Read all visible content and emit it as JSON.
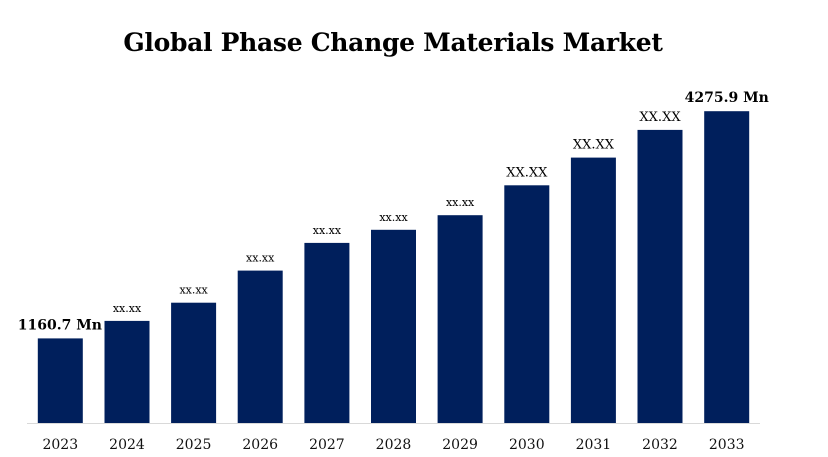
{
  "chart_data": {
    "type": "bar",
    "title": "Global Phase Change Materials Market",
    "xlabel": "",
    "ylabel": "",
    "categories": [
      "2023",
      "2024",
      "2025",
      "2026",
      "2027",
      "2028",
      "2029",
      "2030",
      "2031",
      "2032",
      "2033"
    ],
    "values": [
      1160.7,
      1400,
      1650,
      2090,
      2470,
      2650,
      2850,
      3260,
      3640,
      4020,
      4275.9
    ],
    "data_labels": [
      "1160.7 Mn",
      "xx.xx",
      "xx.xx",
      "xx.xx",
      "xx.xx",
      "xx.xx",
      "xx.xx",
      "XX.XX",
      "XX.XX",
      "XX.XX",
      "4275.9 Mn"
    ],
    "ylim": [
      0,
      4800
    ],
    "grid": false,
    "legend": "none",
    "colors": {
      "bar": "#001f5c",
      "axis": "#d9d9d9"
    }
  }
}
